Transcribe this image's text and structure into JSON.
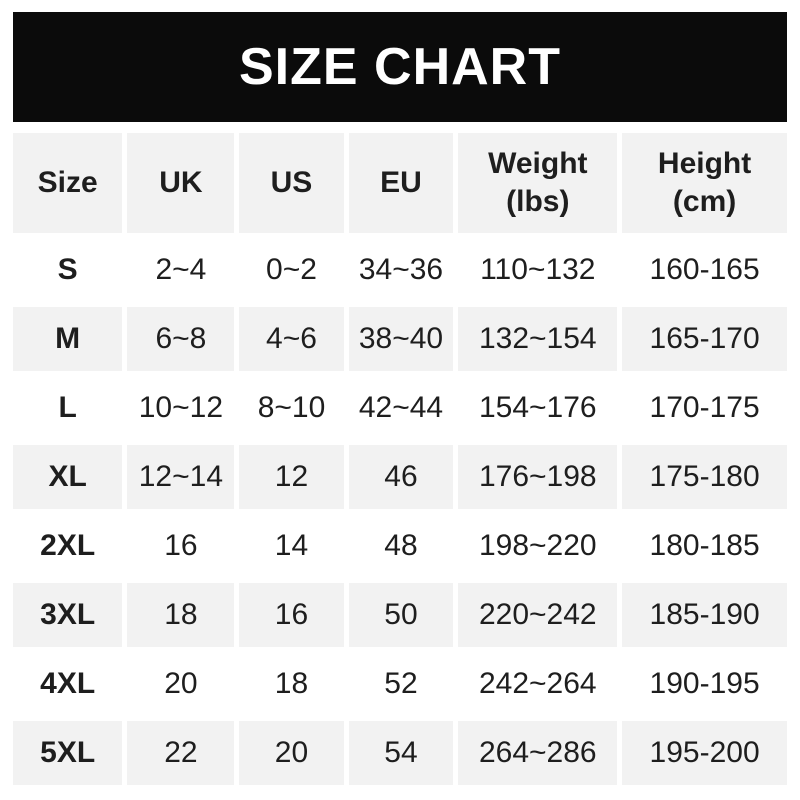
{
  "title": "SIZE CHART",
  "chart_data": {
    "type": "table",
    "title": "SIZE CHART",
    "columns": [
      {
        "key": "size",
        "label": "Size"
      },
      {
        "key": "uk",
        "label": "UK"
      },
      {
        "key": "us",
        "label": "US"
      },
      {
        "key": "eu",
        "label": "EU"
      },
      {
        "key": "weight",
        "label": "Weight",
        "sub": "(lbs)"
      },
      {
        "key": "height",
        "label": "Height",
        "sub": "(cm)"
      }
    ],
    "rows": [
      [
        "S",
        "2~4",
        "0~2",
        "34~36",
        "110~132",
        "160-165"
      ],
      [
        "M",
        "6~8",
        "4~6",
        "38~40",
        "132~154",
        "165-170"
      ],
      [
        "L",
        "10~12",
        "8~10",
        "42~44",
        "154~176",
        "170-175"
      ],
      [
        "XL",
        "12~14",
        "12",
        "46",
        "176~198",
        "175-180"
      ],
      [
        "2XL",
        "16",
        "14",
        "48",
        "198~220",
        "180-185"
      ],
      [
        "3XL",
        "18",
        "16",
        "50",
        "220~242",
        "185-190"
      ],
      [
        "4XL",
        "20",
        "18",
        "52",
        "242~264",
        "190-195"
      ],
      [
        "5XL",
        "22",
        "20",
        "54",
        "264~286",
        "195-200"
      ]
    ]
  },
  "colors": {
    "banner_bg": "#0b0b0b",
    "banner_text": "#ffffff",
    "stripe_bg": "#f2f2f2",
    "text": "#1e1e1e",
    "page_bg": "#ffffff"
  }
}
